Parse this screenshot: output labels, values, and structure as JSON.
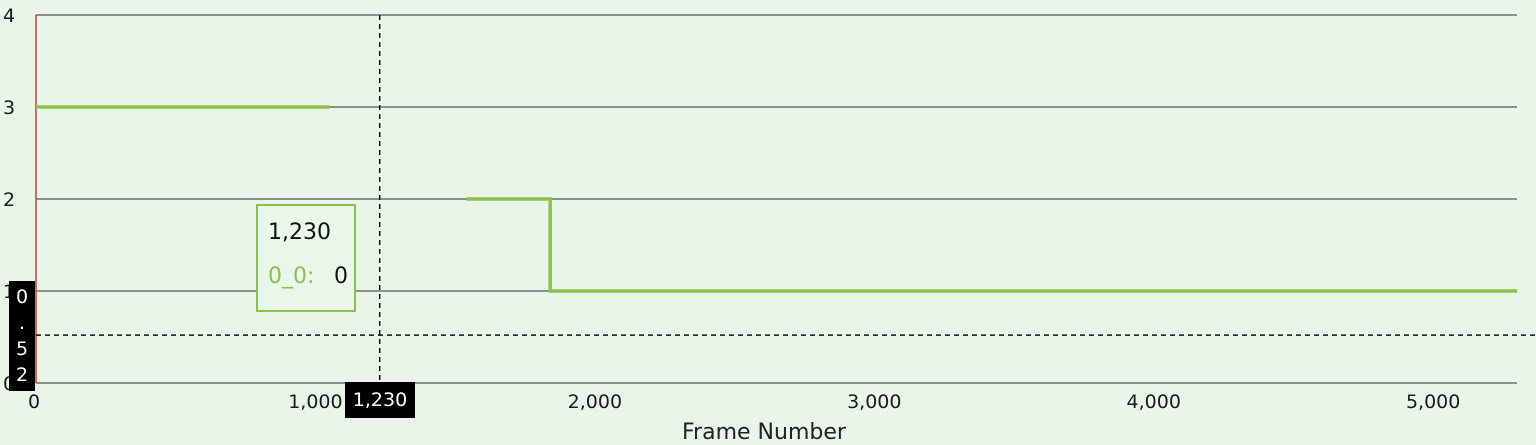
{
  "chart_data": {
    "type": "line",
    "xlabel": "Frame Number",
    "ylabel": "",
    "xlim": [
      0,
      5300
    ],
    "ylim": [
      0,
      4
    ],
    "x_ticks": [
      0,
      1000,
      2000,
      3000,
      4000,
      5000
    ],
    "x_tick_labels": [
      "0",
      "1,000",
      "2,000",
      "3,000",
      "4,000",
      "5,000"
    ],
    "y_ticks": [
      0,
      1,
      2,
      3,
      4
    ],
    "y_tick_labels": [
      "0",
      "1",
      "2",
      "3",
      "4"
    ],
    "grid": "horizontal",
    "series": [
      {
        "name": "0_0",
        "color": "#8bc34a",
        "segments": [
          [
            [
              0,
              3
            ],
            [
              1050,
              3
            ]
          ],
          [
            [
              1540,
              2
            ],
            [
              1840,
              2
            ],
            [
              1840,
              1
            ],
            [
              5300,
              1
            ]
          ]
        ]
      }
    ],
    "cursor": {
      "x": 1230,
      "y": 0.52,
      "x_label": "1,230",
      "y_label_chars": [
        "0",
        ".",
        "5",
        "2"
      ]
    },
    "tooltip": {
      "x_text": "1,230",
      "series_label": "0_0:",
      "value": "0"
    }
  }
}
